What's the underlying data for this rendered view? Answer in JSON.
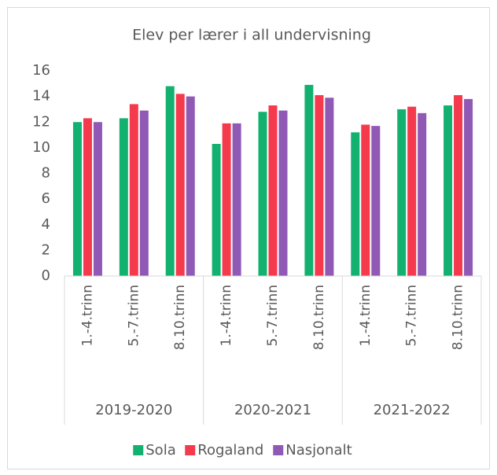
{
  "chart_data": {
    "type": "bar",
    "title": "Elev per lærer i all undervisning",
    "categories": [
      "1.-4.trinn",
      "5.-7.trinn",
      "8.10.trinn",
      "1.-4.trinn",
      "5.-7.trinn",
      "8.10.trinn",
      "1.-4.trinn",
      "5.-7.trinn",
      "8.10.trinn"
    ],
    "groups": [
      "2019-2020",
      "2020-2021",
      "2021-2022"
    ],
    "series": [
      {
        "name": "Sola",
        "color": "#13b16f",
        "values": [
          12.0,
          12.3,
          14.8,
          10.3,
          12.8,
          14.9,
          11.2,
          13.0,
          13.3
        ]
      },
      {
        "name": "Rogaland",
        "color": "#f43a4c",
        "values": [
          12.3,
          13.4,
          14.2,
          11.9,
          13.3,
          14.1,
          11.8,
          13.2,
          14.1
        ]
      },
      {
        "name": "Nasjonalt",
        "color": "#8f59b5",
        "values": [
          12.0,
          12.9,
          14.0,
          11.9,
          12.9,
          13.9,
          11.7,
          12.7,
          13.8
        ]
      }
    ],
    "ylim": [
      0,
      16
    ],
    "yticks": [
      0,
      2,
      4,
      6,
      8,
      10,
      12,
      14,
      16
    ],
    "grid": false,
    "legend": "bottom"
  }
}
